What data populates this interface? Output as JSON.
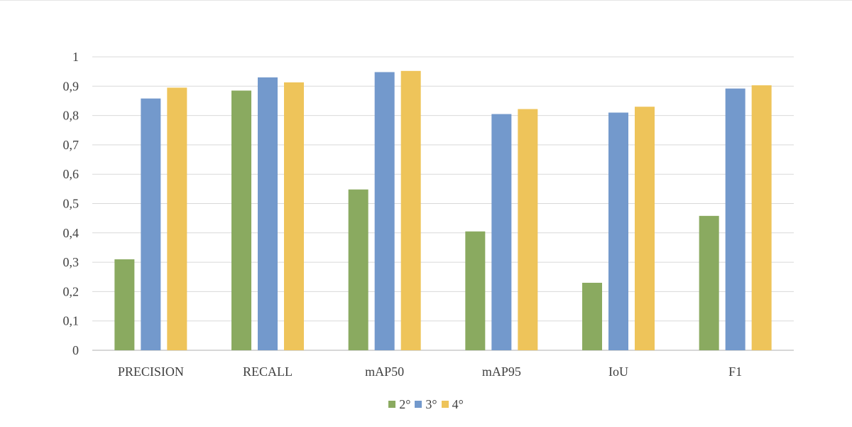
{
  "chart_data": {
    "type": "bar",
    "title": "",
    "xlabel": "",
    "ylabel": "",
    "categories": [
      "PRECISION",
      "RECALL",
      "mAP50",
      "mAP95",
      "IoU",
      "F1"
    ],
    "series": [
      {
        "name": "2°",
        "color": "#8aaa60",
        "values": [
          0.31,
          0.885,
          0.548,
          0.405,
          0.23,
          0.458
        ]
      },
      {
        "name": "3°",
        "color": "#7399cc",
        "values": [
          0.858,
          0.93,
          0.948,
          0.805,
          0.81,
          0.892
        ]
      },
      {
        "name": "4°",
        "color": "#eec45a",
        "values": [
          0.895,
          0.913,
          0.952,
          0.822,
          0.83,
          0.903
        ]
      }
    ],
    "y_ticks": [
      "0",
      "0,1",
      "0,2",
      "0,3",
      "0,4",
      "0,5",
      "0,6",
      "0,7",
      "0,8",
      "0,9",
      "1"
    ],
    "ylim": [
      0,
      1
    ],
    "grid": true,
    "legend_position": "bottom-center"
  }
}
